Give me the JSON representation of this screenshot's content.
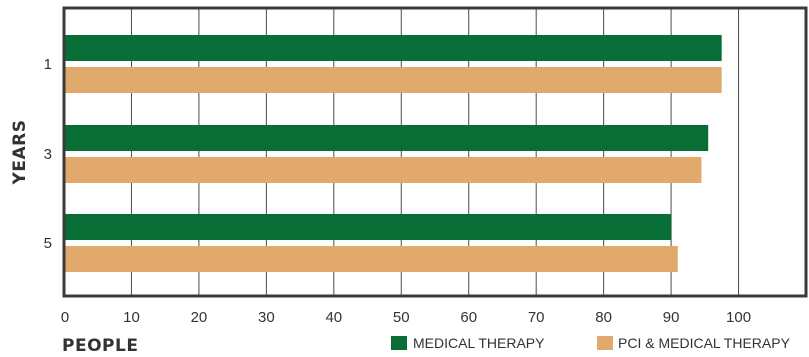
{
  "chart_data": {
    "type": "bar",
    "orientation": "horizontal",
    "categories": [
      "1",
      "3",
      "5"
    ],
    "series": [
      {
        "name": "MEDICAL THERAPY",
        "color": "#086e35",
        "values": [
          97.5,
          95.5,
          90
        ]
      },
      {
        "name": "PCI & MEDICAL THERAPY",
        "color": "#e1aa6c",
        "values": [
          97.5,
          94.5,
          91
        ]
      }
    ],
    "xlabel": "PEOPLE",
    "ylabel": "YEARS",
    "xlim": [
      0,
      110
    ],
    "xticks": [
      "0",
      "10",
      "20",
      "30",
      "40",
      "50",
      "60",
      "70",
      "80",
      "90",
      "100"
    ],
    "grid": true,
    "legend_position": "bottom-right"
  }
}
